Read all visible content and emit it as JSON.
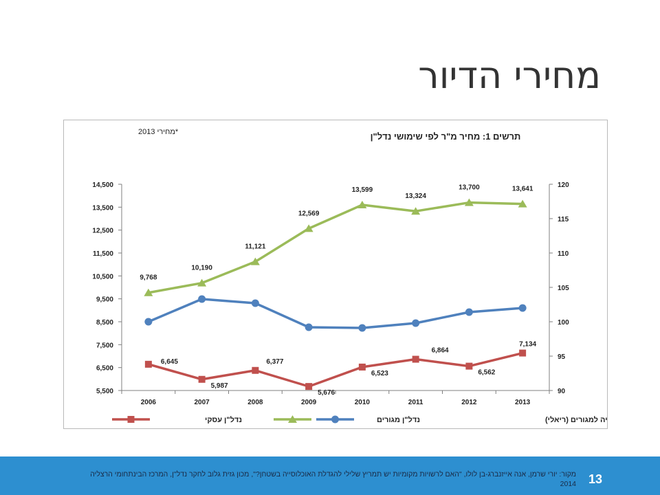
{
  "slide": {
    "title": "מחירי הדיור",
    "page_number": "13",
    "source_text": "מקור: יורי שרמן, אנה אייזנברג-בן לולו, \"האם לרשויות מקומיות יש תמריץ שלילי להגדלת האוכלוסייה בשטחן?\", מכון גזית גלוב לחקר נדל\"ן, המרכז הבינתחומי הרצליה 2014"
  },
  "chart_data": {
    "type": "line",
    "title": "תרשים 1: מחיר מ\"ר לפי שימושי נדל\"ן",
    "note": "*מחירי 2013",
    "categories": [
      "2006",
      "2007",
      "2008",
      "2009",
      "2010",
      "2011",
      "2012",
      "2013"
    ],
    "left_ticks": [
      "14,500",
      "13,500",
      "12,500",
      "11,500",
      "10,500",
      "9,500",
      "8,500",
      "7,500",
      "6,500",
      "5,500"
    ],
    "right_ticks": [
      "120",
      "115",
      "110",
      "105",
      "100",
      "95",
      "90"
    ],
    "ylim_left": [
      5500,
      14500
    ],
    "ylim_right": [
      90,
      120
    ],
    "grid": false,
    "legend_position": "bottom",
    "series": [
      {
        "name": "נדל\"ן מגורים",
        "axis": "left",
        "color": "#9bbb59",
        "marker": "triangle",
        "values": [
          9768,
          10190,
          11121,
          12569,
          13599,
          13324,
          13700,
          13641
        ],
        "labels": [
          "9,768",
          "10,190",
          "11,121",
          "12,569",
          "13,599",
          "13,324",
          "13,700",
          "13,641"
        ]
      },
      {
        "name": "מדד תשומות בניה למגורים (ריאלי)",
        "axis": "right",
        "color": "#4f81bd",
        "marker": "circle",
        "values": [
          100,
          103.3,
          102.7,
          99.2,
          99.1,
          99.8,
          101.4,
          102
        ]
      },
      {
        "name": "נדל\"ן עסקי",
        "axis": "left",
        "color": "#c0504d",
        "marker": "square",
        "values": [
          6645,
          5987,
          6377,
          5676,
          6523,
          6864,
          6562,
          7134
        ],
        "labels": [
          "6,645",
          "5,987",
          "6,377",
          "5,676",
          "6,523",
          "6,864",
          "6,562",
          "7,134"
        ]
      }
    ]
  }
}
